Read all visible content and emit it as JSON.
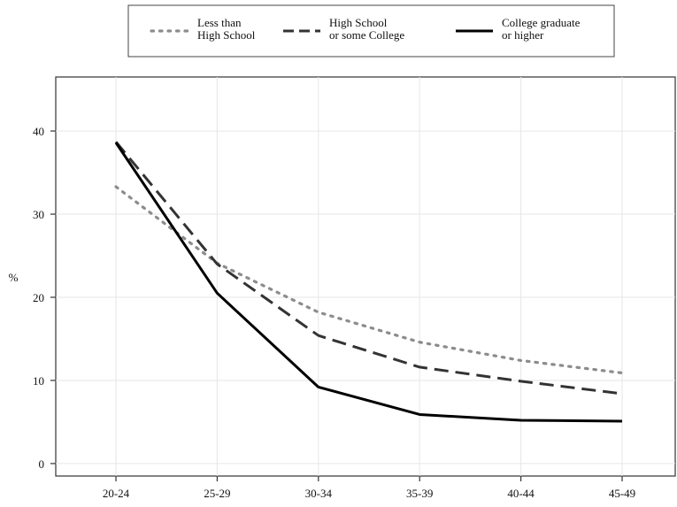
{
  "chart_data": {
    "type": "line",
    "title": "",
    "xlabel": "",
    "ylabel": "%",
    "categories": [
      "20-24",
      "25-29",
      "30-34",
      "35-39",
      "40-44",
      "45-49"
    ],
    "ylim": [
      -1.5,
      46.5
    ],
    "yticks": [
      0,
      10,
      20,
      30,
      40
    ],
    "grid": true,
    "legend_position": "top",
    "series": [
      {
        "name": "Less than High School",
        "name_lines": [
          "Less than",
          "High School"
        ],
        "style": "dotted",
        "color": "#8c8c8c",
        "values": [
          33.3,
          24.1,
          18.2,
          14.6,
          12.4,
          10.9
        ]
      },
      {
        "name": "High School or some College",
        "name_lines": [
          "High School",
          "or some College"
        ],
        "style": "dashed",
        "color": "#333333",
        "values": [
          38.7,
          24.0,
          15.4,
          11.6,
          9.9,
          8.4
        ]
      },
      {
        "name": "College graduate or higher",
        "name_lines": [
          "College graduate",
          "or higher"
        ],
        "style": "solid",
        "color": "#000000",
        "values": [
          38.6,
          20.5,
          9.2,
          5.9,
          5.2,
          5.1
        ]
      }
    ]
  }
}
